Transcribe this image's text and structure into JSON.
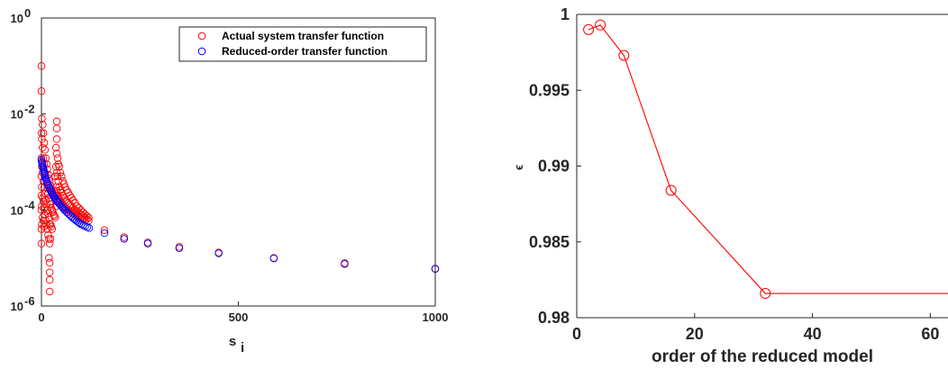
{
  "colors": {
    "actual": "#ff0000",
    "reduced": "#0000ff",
    "axis": "#262626",
    "line": "#ff0000"
  },
  "chart_data": [
    {
      "type": "scatter",
      "title": "",
      "xlabel_main": "s",
      "xlabel_sub": "i",
      "ylabel": "",
      "xlim": [
        0,
        1000
      ],
      "ylim": [
        1e-06,
        1
      ],
      "yscale": "log",
      "xticks": [
        0,
        500,
        1000
      ],
      "yticks": [
        {
          "value": 1e-06,
          "base": "10",
          "exp": "-6"
        },
        {
          "value": 0.0001,
          "base": "10",
          "exp": "-4"
        },
        {
          "value": 0.01,
          "base": "10",
          "exp": "-2"
        },
        {
          "value": 1,
          "base": "10",
          "exp": "0"
        }
      ],
      "grid": false,
      "legend_position": "top-right",
      "series": [
        {
          "name": "Actual system transfer function",
          "color": "#ff0000",
          "marker": "circle-open",
          "points": [
            [
              0,
              0.1
            ],
            [
              0,
              0.03
            ],
            [
              0,
              0.004
            ],
            [
              0,
              0.0012
            ],
            [
              0,
              0.0005
            ],
            [
              0,
              0.0002
            ],
            [
              0,
              0.0001
            ],
            [
              0,
              4e-05
            ],
            [
              0,
              2e-05
            ],
            [
              1,
              0.008
            ],
            [
              1,
              0.003
            ],
            [
              1,
              0.0008
            ],
            [
              1,
              0.0003
            ],
            [
              1,
              0.00012
            ],
            [
              1,
              5e-05
            ],
            [
              3,
              0.006
            ],
            [
              3,
              0.002
            ],
            [
              3,
              0.0006
            ],
            [
              3,
              0.00018
            ],
            [
              3,
              7e-05
            ],
            [
              5,
              0.004
            ],
            [
              5,
              0.0012
            ],
            [
              5,
              0.0004
            ],
            [
              5,
              0.00015
            ],
            [
              5,
              6e-05
            ],
            [
              7,
              0.0025
            ],
            [
              7,
              0.0009
            ],
            [
              7,
              0.0003
            ],
            [
              7,
              0.00011
            ],
            [
              7,
              4.5e-05
            ],
            [
              9,
              0.0018
            ],
            [
              9,
              0.0006
            ],
            [
              9,
              0.00022
            ],
            [
              9,
              8e-05
            ],
            [
              11,
              0.0012
            ],
            [
              11,
              0.00045
            ],
            [
              11,
              0.00016
            ],
            [
              11,
              6e-05
            ],
            [
              13,
              0.0009
            ],
            [
              13,
              0.00035
            ],
            [
              13,
              0.00013
            ],
            [
              13,
              5e-05
            ],
            [
              15,
              0.0007
            ],
            [
              15,
              0.00028
            ],
            [
              15,
              0.0001
            ],
            [
              15,
              4e-05
            ],
            [
              17,
              0.00055
            ],
            [
              17,
              0.00022
            ],
            [
              17,
              8.5e-05
            ],
            [
              17,
              3e-05
            ],
            [
              19,
              0.00045
            ],
            [
              19,
              0.00018
            ],
            [
              19,
              7e-05
            ],
            [
              19,
              2.5e-05
            ],
            [
              19,
              1e-05
            ],
            [
              21,
              0.0004
            ],
            [
              21,
              0.00015
            ],
            [
              21,
              5e-05
            ],
            [
              21,
              2e-05
            ],
            [
              21,
              8e-06
            ],
            [
              21,
              5e-06
            ],
            [
              21,
              3.5e-06
            ],
            [
              21,
              2e-06
            ],
            [
              23,
              0.00032
            ],
            [
              23,
              0.00013
            ],
            [
              23,
              5e-05
            ],
            [
              23,
              2.5e-05
            ],
            [
              25,
              0.00028
            ],
            [
              25,
              0.00011
            ],
            [
              25,
              4.5e-05
            ],
            [
              27,
              0.00025
            ],
            [
              27,
              0.0001
            ],
            [
              27,
              4e-05
            ],
            [
              29,
              0.00022
            ],
            [
              29,
              9e-05
            ],
            [
              31,
              0.0002
            ],
            [
              31,
              8e-05
            ],
            [
              33,
              0.00018
            ],
            [
              33,
              7.5e-05
            ],
            [
              35,
              0.0005
            ],
            [
              35,
              0.0002
            ],
            [
              35,
              7e-05
            ],
            [
              37,
              0.002
            ],
            [
              37,
              0.0008
            ],
            [
              37,
              0.0003
            ],
            [
              37,
              0.00012
            ],
            [
              39,
              0.007
            ],
            [
              39,
              0.005
            ],
            [
              39,
              0.003
            ],
            [
              39,
              0.0015
            ],
            [
              39,
              0.0006
            ],
            [
              39,
              0.00025
            ],
            [
              41,
              0.0012
            ],
            [
              41,
              0.0005
            ],
            [
              41,
              0.0002
            ],
            [
              43,
              0.0009
            ],
            [
              43,
              0.0004
            ],
            [
              43,
              0.00018
            ],
            [
              45,
              0.0008
            ],
            [
              45,
              0.0003
            ],
            [
              45,
              0.00016
            ],
            [
              48,
              0.0006
            ],
            [
              48,
              0.00026
            ],
            [
              48,
              0.00015
            ],
            [
              51,
              0.0005
            ],
            [
              51,
              0.00023
            ],
            [
              51,
              0.00014
            ],
            [
              54,
              0.0004
            ],
            [
              54,
              0.0002
            ],
            [
              54,
              0.00013
            ],
            [
              57,
              0.00035
            ],
            [
              57,
              0.00018
            ],
            [
              57,
              0.00012
            ],
            [
              60,
              0.0003
            ],
            [
              60,
              0.00016
            ],
            [
              60,
              0.00011
            ],
            [
              64,
              0.00026
            ],
            [
              64,
              0.00015
            ],
            [
              64,
              0.000105
            ],
            [
              68,
              0.00023
            ],
            [
              68,
              0.00014
            ],
            [
              68,
              0.0001
            ],
            [
              72,
              0.0002
            ],
            [
              72,
              0.00013
            ],
            [
              72,
              9.5e-05
            ],
            [
              76,
              0.00018
            ],
            [
              76,
              0.00012
            ],
            [
              76,
              9e-05
            ],
            [
              80,
              0.00016
            ],
            [
              80,
              0.00011
            ],
            [
              80,
              8.5e-05
            ],
            [
              85,
              0.00014
            ],
            [
              85,
              0.0001
            ],
            [
              85,
              8e-05
            ],
            [
              90,
              0.00012
            ],
            [
              90,
              9.3e-05
            ],
            [
              90,
              7.6e-05
            ],
            [
              95,
              0.00011
            ],
            [
              95,
              8.6e-05
            ],
            [
              95,
              7.2e-05
            ],
            [
              100,
              0.0001
            ],
            [
              100,
              8e-05
            ],
            [
              100,
              6.8e-05
            ],
            [
              105,
              9e-05
            ],
            [
              105,
              7.4e-05
            ],
            [
              105,
              6.5e-05
            ],
            [
              110,
              8.2e-05
            ],
            [
              110,
              6.9e-05
            ],
            [
              110,
              6.2e-05
            ],
            [
              115,
              7.5e-05
            ],
            [
              115,
              6.4e-05
            ],
            [
              120,
              6.9e-05
            ],
            [
              120,
              6e-05
            ],
            [
              160,
              3.8e-05
            ],
            [
              210,
              2.7e-05
            ],
            [
              270,
              2.1e-05
            ],
            [
              350,
              1.7e-05
            ],
            [
              450,
              1.3e-05
            ],
            [
              590,
              1e-05
            ],
            [
              770,
              7.8e-06
            ],
            [
              1000,
              6e-06
            ]
          ]
        },
        {
          "name": "Reduced-order transfer function",
          "color": "#0000ff",
          "marker": "circle-open",
          "points": [
            [
              0,
              0.0011
            ],
            [
              1,
              0.001
            ],
            [
              2,
              0.00093
            ],
            [
              3,
              0.00085
            ],
            [
              4,
              0.00078
            ],
            [
              5,
              0.00072
            ],
            [
              6,
              0.00066
            ],
            [
              7,
              0.00061
            ],
            [
              8,
              0.00056
            ],
            [
              9,
              0.00052
            ],
            [
              10,
              0.00048
            ],
            [
              12,
              0.00043
            ],
            [
              14,
              0.00039
            ],
            [
              16,
              0.00035
            ],
            [
              18,
              0.00032
            ],
            [
              20,
              0.00029
            ],
            [
              22,
              0.00027
            ],
            [
              24,
              0.00025
            ],
            [
              26,
              0.00023
            ],
            [
              28,
              0.00021
            ],
            [
              30,
              0.0002
            ],
            [
              32,
              0.00019
            ],
            [
              34,
              0.00018
            ],
            [
              36,
              0.00017
            ],
            [
              38,
              0.00016
            ],
            [
              40,
              0.00015
            ],
            [
              43,
              0.000142
            ],
            [
              46,
              0.000132
            ],
            [
              49,
              0.000124
            ],
            [
              52,
              0.000116
            ],
            [
              55,
              0.000109
            ],
            [
              58,
              0.000102
            ],
            [
              61,
              9.6e-05
            ],
            [
              65,
              8.9e-05
            ],
            [
              69,
              8.3e-05
            ],
            [
              73,
              7.7e-05
            ],
            [
              77,
              7.2e-05
            ],
            [
              81,
              6.7e-05
            ],
            [
              85,
              6.3e-05
            ],
            [
              89,
              5.9e-05
            ],
            [
              93,
              5.6e-05
            ],
            [
              97,
              5.3e-05
            ],
            [
              101,
              5e-05
            ],
            [
              106,
              4.8e-05
            ],
            [
              111,
              4.6e-05
            ],
            [
              116,
              4.4e-05
            ],
            [
              121,
              4.2e-05
            ],
            [
              160,
              3.3e-05
            ],
            [
              210,
              2.5e-05
            ],
            [
              270,
              2e-05
            ],
            [
              350,
              1.6e-05
            ],
            [
              450,
              1.25e-05
            ],
            [
              590,
              9.8e-06
            ],
            [
              770,
              7.5e-06
            ],
            [
              1000,
              5.9e-06
            ]
          ]
        }
      ]
    },
    {
      "type": "line",
      "title": "",
      "xlabel": "order of the reduced model",
      "ylabel": "ϵ",
      "xlim": [
        0,
        63
      ],
      "ylim": [
        0.98,
        1
      ],
      "xticks": [
        "0",
        "20",
        "40",
        "60"
      ],
      "yticks": [
        "0.98",
        "0.985",
        "0.99",
        "0.995",
        "1"
      ],
      "grid": false,
      "series": [
        {
          "color": "#ff0000",
          "marker": "circle-open",
          "x": [
            2,
            4,
            8,
            16,
            32,
            64
          ],
          "y": [
            0.999,
            0.9993,
            0.9973,
            0.9884,
            0.9816,
            0.9816
          ],
          "marker_points": [
            2,
            4,
            8,
            16,
            32
          ]
        }
      ]
    }
  ]
}
